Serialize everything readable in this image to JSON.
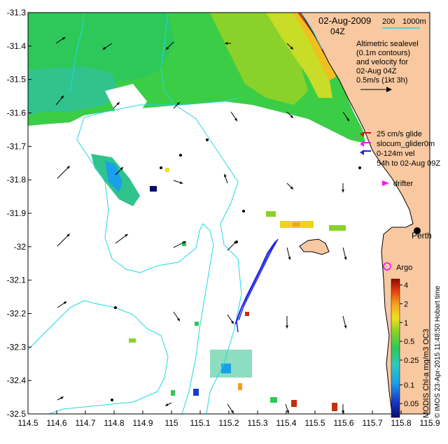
{
  "map": {
    "date_label": "02-Aug-2009",
    "time_label": "04Z",
    "depth_legend": {
      "d200": "200",
      "d1000": "1000m"
    },
    "altimetry_note": [
      "Altimetric sealevel",
      "(0.1m contours)",
      "and velocity for",
      "02-Aug 04Z"
    ],
    "velocity_scale_label": "0.5m/s (1kt 3h)",
    "glider_legend": {
      "line1": "25 cm/s glide",
      "line2": "slocum_glider0m",
      "line3": "0-124m vel",
      "line4": "54h to 02-Aug 09Z"
    },
    "drifter_label": "drifter",
    "city_label": "Perth",
    "argo_label": "Argo",
    "credit": "© IMOS 23-Apr-2015 11:48:50 Hobart time",
    "colorbar_title": "MODIS Chl-a mg/m3 OC3",
    "colorbar_ticks": [
      "4",
      "2",
      "1",
      "0.5",
      "0.25",
      "0.1",
      "0.05"
    ],
    "colors": {
      "land": "#f8c8a0",
      "coast": "#000000",
      "isobath": "#1fd7e6",
      "glider_track": "#1a24e0",
      "drifter": "#ff10ff",
      "argo": "#ff00ff"
    }
  },
  "axes": {
    "x_ticks": [
      "114.5",
      "114.6",
      "114.7",
      "114.8",
      "114.9",
      "115",
      "115.1",
      "115.2",
      "115.3",
      "115.4",
      "115.5",
      "115.6",
      "115.7",
      "115.8",
      "115.9"
    ],
    "y_ticks": [
      "-31.3",
      "-31.4",
      "-31.5",
      "-31.6",
      "-31.7",
      "-31.8",
      "-31.9",
      "-32",
      "-32.1",
      "-32.2",
      "-32.3",
      "-32.4",
      "-32.5"
    ],
    "x_range": [
      114.5,
      115.9
    ],
    "y_range": [
      -32.5,
      -31.3
    ]
  }
}
